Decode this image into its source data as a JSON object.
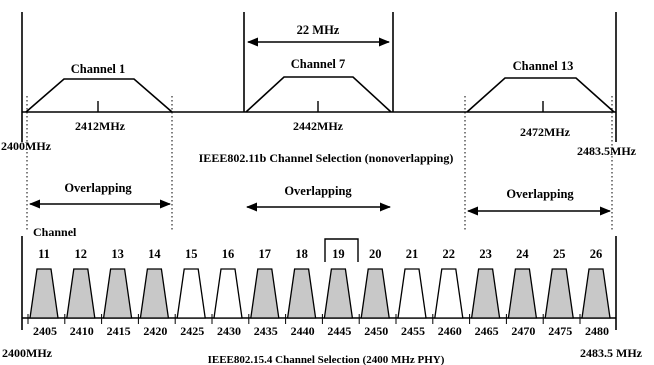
{
  "top": {
    "bandwidth_label": "22 MHz",
    "channels": [
      {
        "label": "Channel 1",
        "freq": "2412MHz"
      },
      {
        "label": "Channel 7",
        "freq": "2442MHz"
      },
      {
        "label": "Channel 13",
        "freq": "2472MHz"
      }
    ],
    "start_freq": "2400MHz",
    "end_freq": "2483.5MHz",
    "caption": "IEEE802.11b Channel Selection (nonoverlapping)"
  },
  "middle": {
    "overlap_labels": [
      "Overlapping",
      "Overlapping",
      "Overlapping"
    ]
  },
  "bottom": {
    "channel_label": "Channel",
    "channels": [
      {
        "num": "11",
        "freq": "2405",
        "overlap": true
      },
      {
        "num": "12",
        "freq": "2410",
        "overlap": true
      },
      {
        "num": "13",
        "freq": "2415",
        "overlap": true
      },
      {
        "num": "14",
        "freq": "2420",
        "overlap": true
      },
      {
        "num": "15",
        "freq": "2425",
        "overlap": false
      },
      {
        "num": "16",
        "freq": "2430",
        "overlap": false
      },
      {
        "num": "17",
        "freq": "2435",
        "overlap": true
      },
      {
        "num": "18",
        "freq": "2440",
        "overlap": true
      },
      {
        "num": "19",
        "freq": "2445",
        "overlap": true
      },
      {
        "num": "20",
        "freq": "2450",
        "overlap": true
      },
      {
        "num": "21",
        "freq": "2455",
        "overlap": false
      },
      {
        "num": "22",
        "freq": "2460",
        "overlap": false
      },
      {
        "num": "23",
        "freq": "2465",
        "overlap": true
      },
      {
        "num": "24",
        "freq": "2470",
        "overlap": true
      },
      {
        "num": "25",
        "freq": "2475",
        "overlap": true
      },
      {
        "num": "26",
        "freq": "2480",
        "overlap": true
      }
    ],
    "start_freq": "2400MHz",
    "end_freq": "2483.5 MHz",
    "caption": "IEEE802.15.4 Channel Selection (2400 MHz PHY)"
  },
  "colors": {
    "overlap_fill": "#c8c8c8",
    "free_fill": "#ffffff"
  }
}
